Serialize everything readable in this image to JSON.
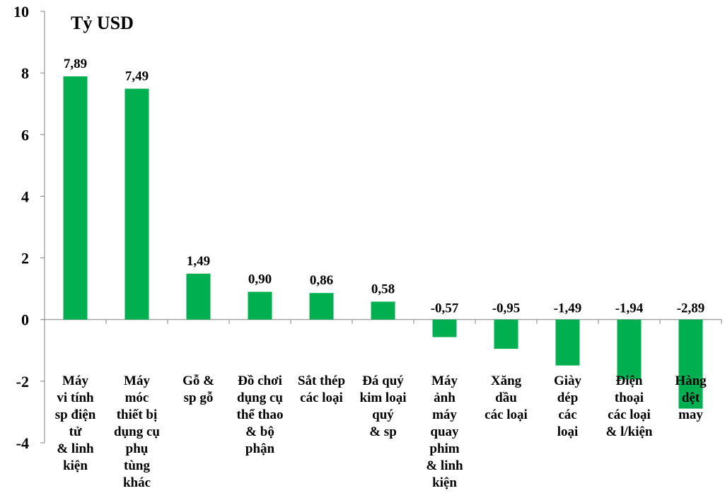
{
  "chart_data": {
    "type": "bar",
    "unit": "Tỷ USD",
    "ylim": [
      -4,
      10
    ],
    "yticks": [
      "10",
      "8",
      "6",
      "4",
      "2",
      "0",
      "-2",
      "-4"
    ],
    "categories": [
      "Máy vi tính sp điện tử & linh kiện",
      "Máy móc thiết bị dụng cụ phụ tùng khác",
      "Gỗ & sp gỗ",
      "Đồ chơi dụng cụ thể thao & bộ phận",
      "Sắt thép các loại",
      "Đá quý kim loại quý & sp",
      "Máy ảnh máy quay phim & linh kiện",
      "Xăng dầu các loại",
      "Giày dép các loại",
      "Điện thoại các loại & l/kiện",
      "Hàng dệt may"
    ],
    "category_lines": [
      [
        "Máy",
        "vi tính",
        "sp điện",
        "tử",
        "& linh",
        "kiện"
      ],
      [
        "Máy",
        "móc",
        "thiết bị",
        "dụng cụ",
        "phụ",
        "tùng",
        "khác"
      ],
      [
        "Gỗ &",
        "sp gỗ"
      ],
      [
        "Đồ chơi",
        "dụng cụ",
        "thể thao",
        "& bộ",
        "phận"
      ],
      [
        "Sắt thép",
        "các loại"
      ],
      [
        "Đá quý",
        "kim loại",
        "quý",
        "& sp"
      ],
      [
        "Máy",
        "ảnh",
        "máy",
        "quay",
        "phim",
        "& linh",
        "kiện"
      ],
      [
        "Xăng",
        "dầu",
        "các loại"
      ],
      [
        "Giày",
        "dép",
        "các",
        "loại"
      ],
      [
        "Điện",
        "thoại",
        "các loại",
        "& l/kiện"
      ],
      [
        "Hàng",
        "dệt",
        "may"
      ]
    ],
    "values": [
      7.89,
      7.49,
      1.49,
      0.9,
      0.86,
      0.58,
      -0.57,
      -0.95,
      -1.49,
      -1.94,
      -2.89
    ],
    "value_labels": [
      "7,89",
      "7,49",
      "1,49",
      "0,90",
      "0,86",
      "0,58",
      "-0,57",
      "-0,95",
      "-1,49",
      "-1,94",
      "-2,89"
    ],
    "bar_color": "#00b050",
    "grid": false,
    "legend": "none"
  }
}
